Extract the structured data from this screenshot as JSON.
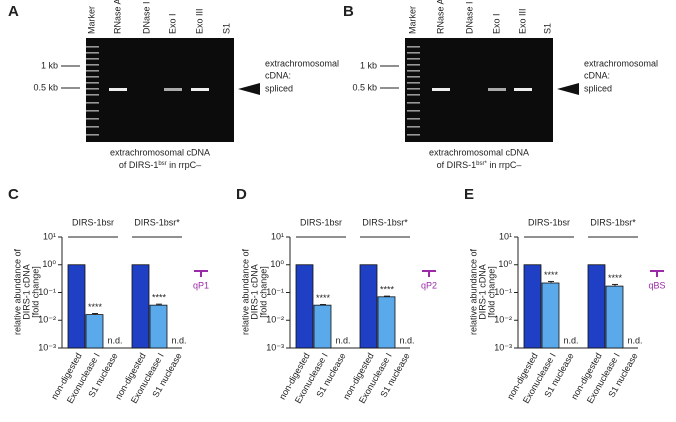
{
  "gels": [
    {
      "letter": "A",
      "lanes": [
        "Marker",
        "RNase A",
        "DNase I",
        "Exo I",
        "Exo III",
        "S1"
      ],
      "sizes": [
        "1 kb",
        "0.5 kb"
      ],
      "band_label": [
        "extrachromosomal",
        "cDNA:",
        "spliced"
      ],
      "caption": [
        "extrachromosomal cDNA",
        "of DIRS-1",
        "bsr",
        " in rrpC–"
      ]
    },
    {
      "letter": "B",
      "lanes": [
        "Marker",
        "RNase A",
        "DNase I",
        "Exo I",
        "Exo III",
        "S1"
      ],
      "sizes": [
        "1 kb",
        "0.5 kb"
      ],
      "band_label": [
        "extrachromosomal",
        "cDNA:",
        "spliced"
      ],
      "caption": [
        "extrachromosomal cDNA",
        "of DIRS-1",
        "bsr*",
        " in rrpC–"
      ]
    }
  ],
  "chart_data": [
    {
      "type": "bar",
      "letter": "C",
      "primer": "qP1",
      "ylabel": [
        "relative abundance of",
        "DIRS-1 cDNA",
        "[fold change]"
      ],
      "log_scale": true,
      "ylim": [
        0.001,
        10
      ],
      "yticks": [
        {
          "value": 0.001,
          "label": "10⁻³"
        },
        {
          "value": 0.01,
          "label": "10⁻²"
        },
        {
          "value": 0.1,
          "label": "10⁻¹"
        },
        {
          "value": 1,
          "label": "10⁰"
        },
        {
          "value": 10,
          "label": "10¹"
        }
      ],
      "groups": [
        "DIRS-1bsr",
        "DIRS-1bsr*"
      ],
      "categories": [
        [
          "non-digested",
          "Exonuclease I",
          "S1 nuclease"
        ],
        [
          "non-digested",
          "Exonuclease I",
          "S1 nuclease"
        ]
      ],
      "colors": [
        "#1f3fc4",
        "#5aa9ea",
        "#5aa9ea"
      ],
      "values": [
        [
          1,
          0.016,
          null
        ],
        [
          1,
          0.035,
          null
        ]
      ],
      "errors": [
        [
          null,
          0.0015,
          null
        ],
        [
          null,
          0.003,
          null
        ]
      ],
      "significance": [
        [
          null,
          "****",
          null
        ],
        [
          null,
          "****",
          null
        ]
      ],
      "nd_labels": [
        [
          null,
          null,
          "n.d."
        ],
        [
          null,
          null,
          "n.d."
        ]
      ]
    },
    {
      "type": "bar",
      "letter": "D",
      "primer": "qP2",
      "ylabel": [
        "relative abundance of",
        "DIRS-1 cDNA",
        "[fold change]"
      ],
      "log_scale": true,
      "ylim": [
        0.001,
        10
      ],
      "yticks": [
        {
          "value": 0.001,
          "label": "10⁻³"
        },
        {
          "value": 0.01,
          "label": "10⁻²"
        },
        {
          "value": 0.1,
          "label": "10⁻¹"
        },
        {
          "value": 1,
          "label": "10⁰"
        },
        {
          "value": 10,
          "label": "10¹"
        }
      ],
      "groups": [
        "DIRS-1bsr",
        "DIRS-1bsr*"
      ],
      "categories": [
        [
          "non-digested",
          "Exonuclease I",
          "S1 nuclease"
        ],
        [
          "non-digested",
          "Exonuclease I",
          "S1 nuclease"
        ]
      ],
      "colors": [
        "#1f3fc4",
        "#5aa9ea",
        "#5aa9ea"
      ],
      "values": [
        [
          1,
          0.035,
          null
        ],
        [
          1,
          0.07,
          null
        ]
      ],
      "errors": [
        [
          null,
          0.002,
          null
        ],
        [
          null,
          0.004,
          null
        ]
      ],
      "significance": [
        [
          null,
          "****",
          null
        ],
        [
          null,
          "****",
          null
        ]
      ],
      "nd_labels": [
        [
          null,
          null,
          "n.d."
        ],
        [
          null,
          null,
          "n.d."
        ]
      ]
    },
    {
      "type": "bar",
      "letter": "E",
      "primer": "qBS",
      "ylabel": [
        "relative abundance of",
        "DIRS-1 cDNA",
        "[fold change]"
      ],
      "log_scale": true,
      "ylim": [
        0.001,
        10
      ],
      "yticks": [
        {
          "value": 0.001,
          "label": "10⁻³"
        },
        {
          "value": 0.01,
          "label": "10⁻²"
        },
        {
          "value": 0.1,
          "label": "10⁻¹"
        },
        {
          "value": 1,
          "label": "10⁰"
        },
        {
          "value": 10,
          "label": "10¹"
        }
      ],
      "groups": [
        "DIRS-1bsr",
        "DIRS-1bsr*"
      ],
      "categories": [
        [
          "non-digested",
          "Exonuclease I",
          "S1 nuclease"
        ],
        [
          "non-digested",
          "Exonuclease I",
          "S1 nuclease"
        ]
      ],
      "colors": [
        "#1f3fc4",
        "#5aa9ea",
        "#5aa9ea"
      ],
      "values": [
        [
          1,
          0.22,
          null
        ],
        [
          1,
          0.17,
          null
        ]
      ],
      "errors": [
        [
          null,
          0.03,
          null
        ],
        [
          null,
          0.025,
          null
        ]
      ],
      "significance": [
        [
          null,
          "****",
          null
        ],
        [
          null,
          "****",
          null
        ]
      ],
      "nd_labels": [
        [
          null,
          null,
          "n.d."
        ],
        [
          null,
          null,
          "n.d."
        ]
      ]
    }
  ]
}
